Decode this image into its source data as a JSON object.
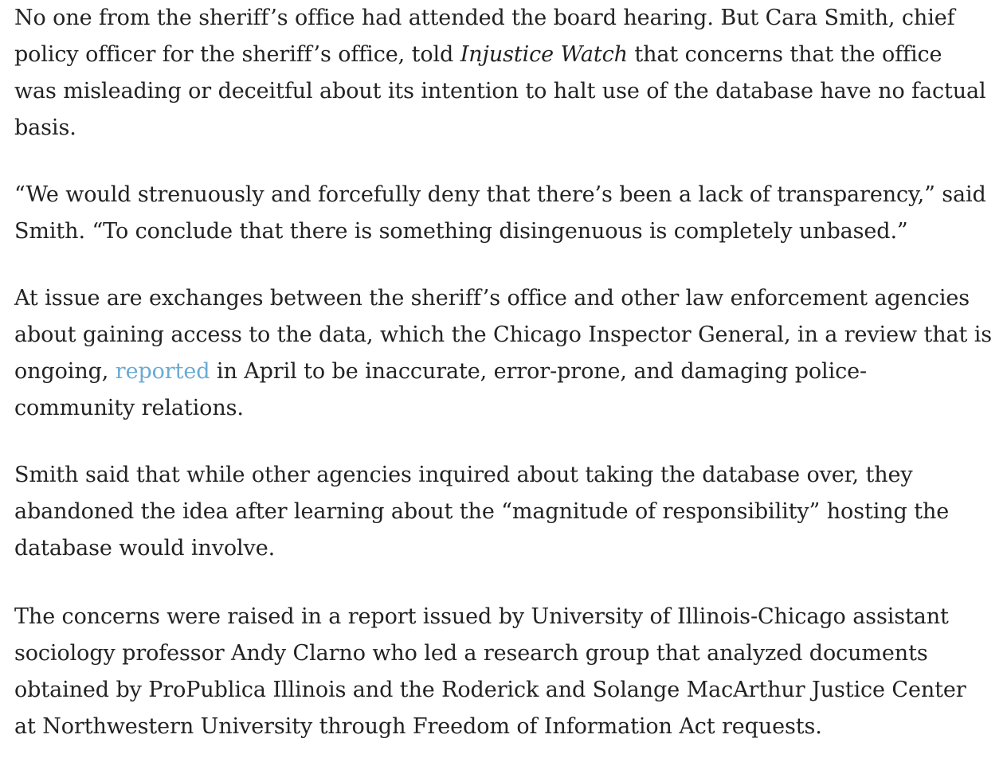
{
  "article": {
    "p1": {
      "l1": "No one from the sheriff’s office had attended the board hearing. But Cara Smith, chief",
      "l2_pre": "policy officer for the sheriff’s office, told ",
      "l2_em": "Injustice Watch",
      "l2_post": " that  concerns that the office",
      "l3": "was misleading or deceitful about its intention to halt use of the database have no factual",
      "l4": "basis."
    },
    "p2": {
      "l1": "“We would strenuously and forcefully deny that there’s been a lack of transparency,” said",
      "l2": "Smith. “To conclude that there is something disingenuous is completely unbased.”"
    },
    "p3": {
      "l1": "At issue are exchanges between the sheriff’s office and other law enforcement agencies",
      "l2": "about gaining access to the data, which the Chicago Inspector General, in a review that is",
      "l3_pre": "ongoing, ",
      "l3_link": "reported",
      "l3_post": " in April to be inaccurate, error-prone, and damaging police-",
      "l4": "community relations."
    },
    "p4": {
      "l1": "Smith said that while other agencies inquired about taking the database over, they",
      "l2": "abandoned the idea after learning about the “magnitude of responsibility” hosting the",
      "l3": "database would involve."
    },
    "p5": {
      "l1": "The concerns were raised in a report issued by University of Illinois-Chicago assistant",
      "l2": "sociology professor Andy Clarno who led a research group that analyzed documents",
      "l3": "obtained by ProPublica Illinois and the Roderick and Solange MacArthur Justice Center",
      "l4": "at Northwestern University through Freedom of Information Act requests."
    }
  },
  "colors": {
    "text": "#222222",
    "link": "#6aaad4",
    "background": "#ffffff"
  }
}
